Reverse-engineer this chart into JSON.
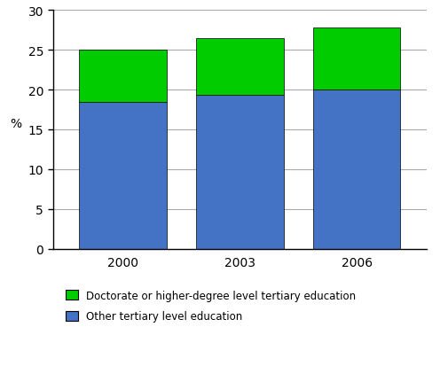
{
  "categories": [
    "2000",
    "2003",
    "2006"
  ],
  "blue_values": [
    18.5,
    19.4,
    20.0
  ],
  "green_values": [
    6.5,
    7.1,
    7.8
  ],
  "blue_color": "#4472C4",
  "green_color": "#00CC00",
  "ylabel": "%",
  "ylim": [
    0,
    30
  ],
  "yticks": [
    0,
    5,
    10,
    15,
    20,
    25,
    30
  ],
  "legend_green": "Doctorate or higher-degree level tertiary education",
  "legend_blue": "Other tertiary level education",
  "background_color": "#FFFFFF",
  "grid_color": "#AAAAAA",
  "bar_width": 0.75,
  "edge_color": "#000000"
}
